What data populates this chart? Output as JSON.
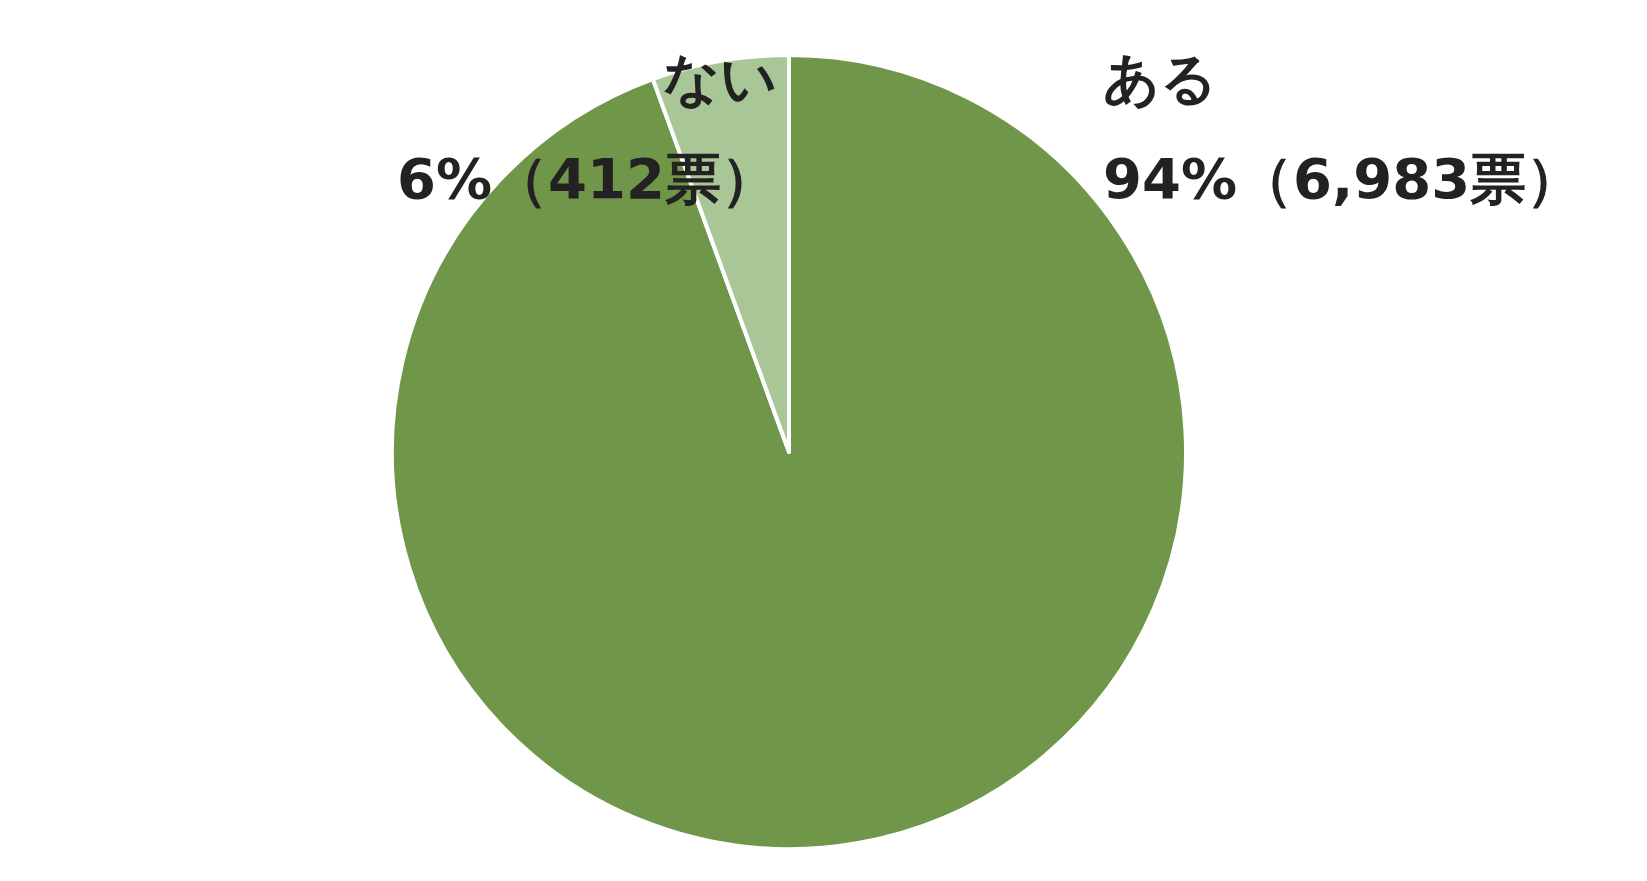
{
  "chart_data": {
    "type": "pie",
    "categories": [
      "ある",
      "ない"
    ],
    "values": [
      6983,
      412
    ],
    "value_labels": [
      "94%（6,983票）",
      "6%（412票）"
    ],
    "colors": [
      "#6f9649",
      "#a9c796"
    ]
  }
}
